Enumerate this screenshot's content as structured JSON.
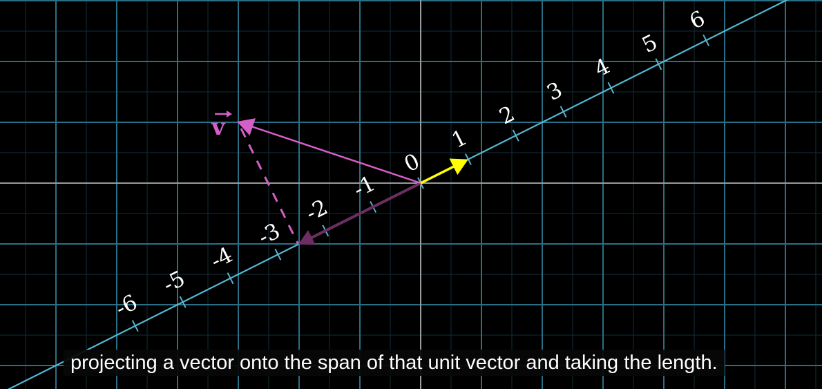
{
  "scene": {
    "colors": {
      "background": "#000000",
      "grid_major": "#2b6f86",
      "grid_minor": "#0f2f3a",
      "axes": "#9a9a9a",
      "span_line": "#55b6cf",
      "unit_vector": "#ffff00",
      "v_vector": "#d55fc8",
      "projection": "#6c2f63",
      "tick_label": "#ffffff"
    },
    "vector_label": "v",
    "number_line_labels": [
      "-6",
      "-5",
      "-4",
      "-3",
      "-2",
      "-1",
      "0",
      "1",
      "2",
      "3",
      "4",
      "5",
      "6"
    ]
  },
  "subtitle": {
    "text": "projecting a vector onto the span of that unit vector and taking the length."
  }
}
